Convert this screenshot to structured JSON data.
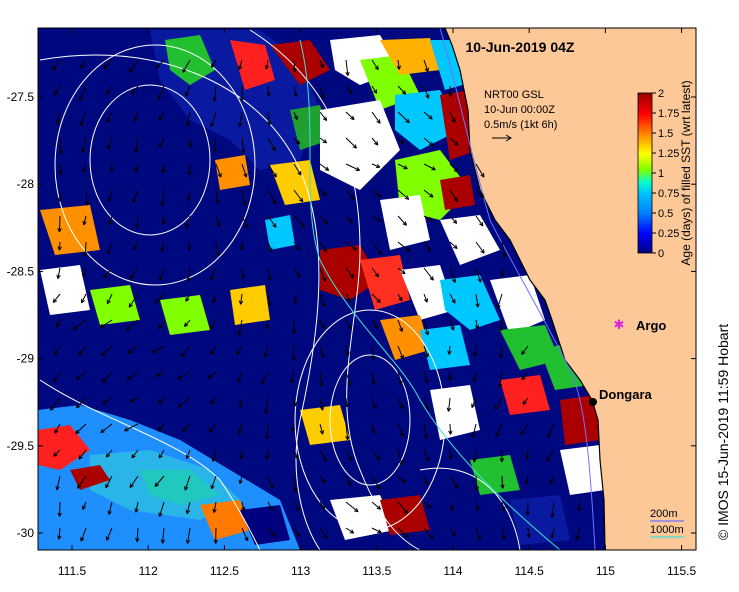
{
  "title": "10-Jun-2019 04Z",
  "credit": "© IMOS 15-Jun-2019 11:59 Hobart",
  "current_legend": {
    "line1": "NRT00 GSL",
    "line2": "10-Jun 00:00Z",
    "line3": "0.5m/s (1kt 6h)"
  },
  "colorbar": {
    "label": "Age (days) of filled SST (wrt latest)",
    "ticks": [
      "0",
      "0.25",
      "0.5",
      "0.75",
      "1",
      "1.25",
      "1.5",
      "1.75",
      "2"
    ],
    "colors": [
      "#00007f",
      "#0000ff",
      "#0080ff",
      "#00c0ff",
      "#00ffd0",
      "#80ff00",
      "#ffff00",
      "#ff8000",
      "#ff0000",
      "#990000"
    ]
  },
  "depth_legend": {
    "contour_200": "200m",
    "contour_1000": "1000m",
    "color_200": "#7070ff",
    "color_1000": "#40e0d0"
  },
  "places": {
    "dongara": "Dongara",
    "argo": "Argo"
  },
  "axes": {
    "x_ticks": [
      "111.5",
      "112",
      "112.5",
      "113",
      "113.5",
      "114",
      "114.5",
      "115",
      "115.5"
    ],
    "y_ticks": [
      "-27.5",
      "-28",
      "-28.5",
      "-29",
      "-29.5",
      "-30"
    ]
  },
  "colors": {
    "land": "#fcc898",
    "ocean_base": "#00087f",
    "cloud": "#ffffff"
  }
}
